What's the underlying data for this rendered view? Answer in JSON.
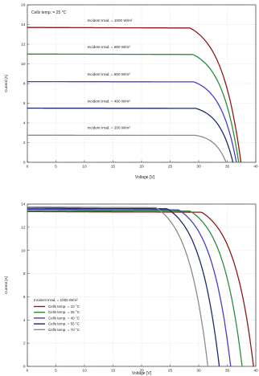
{
  "chart_data": [
    {
      "type": "line",
      "title": "",
      "xlabel": "Voltage [V]",
      "ylabel": "Current [A]",
      "xlim": [
        0,
        40
      ],
      "ylim": [
        0,
        16
      ],
      "xticks": [
        0,
        5,
        10,
        15,
        20,
        25,
        30,
        35,
        40
      ],
      "yticks": [
        0,
        2,
        4,
        6,
        8,
        10,
        12,
        14,
        16
      ],
      "grid": true,
      "annotation": "Cells temp. = 25 °C",
      "series": [
        {
          "name": "Incident Irrad. = 1000 W/m²",
          "color": "#8b1a1a",
          "isc": 13.7,
          "voc": 37.4,
          "vk": 28.5
        },
        {
          "name": "Incident Irrad. = 800 W/m²",
          "color": "#2e8b3d",
          "isc": 11.0,
          "voc": 37.0,
          "vk": 29.0
        },
        {
          "name": "Incident Irrad. = 600 W/m²",
          "color": "#4a3fbf",
          "isc": 8.2,
          "voc": 36.6,
          "vk": 29.2
        },
        {
          "name": "Incident Irrad. = 400 W/m²",
          "color": "#1f2a6b",
          "isc": 5.5,
          "voc": 36.0,
          "vk": 29.5
        },
        {
          "name": "Incident Irrad. = 200 W/m²",
          "color": "#8c8c8c",
          "isc": 2.75,
          "voc": 34.8,
          "vk": 29.5
        }
      ],
      "labels": [
        {
          "text": "Incident Irrad. = 1000 W/m²",
          "x": 10.5,
          "y": 14.3
        },
        {
          "text": "Incident Irrad. = 800 W/m²",
          "x": 10.5,
          "y": 11.6
        },
        {
          "text": "Incident Irrad. = 600 W/m²",
          "x": 10.5,
          "y": 8.8
        },
        {
          "text": "Incident Irrad. = 400 W/m²",
          "x": 10.5,
          "y": 6.1
        },
        {
          "text": "Incident Irrad. = 200 W/m²",
          "x": 10.5,
          "y": 3.4
        }
      ]
    },
    {
      "type": "line",
      "title": "",
      "xlabel": "Voltage [V]",
      "ylabel": "Current [A]",
      "xlim": [
        0,
        40
      ],
      "ylim": [
        0,
        14
      ],
      "xticks": [
        0,
        5,
        10,
        15,
        20,
        25,
        30,
        35,
        40
      ],
      "yticks": [
        0,
        2,
        4,
        6,
        8,
        10,
        12,
        14
      ],
      "grid": true,
      "legend_title": "Incident Irrad. = 1000 W/m²",
      "legend_placement": "center-left",
      "series": [
        {
          "name": "Cells temp. = 10 °C",
          "color": "#8b1a1a",
          "isc": 13.35,
          "voc": 39.6,
          "vk": 30.5
        },
        {
          "name": "Cells temp. = 25 °C",
          "color": "#2e8b3d",
          "isc": 13.45,
          "voc": 37.6,
          "vk": 28.5
        },
        {
          "name": "Cells temp. = 40 °C",
          "color": "#4a3fbf",
          "isc": 13.55,
          "voc": 35.6,
          "vk": 26.5
        },
        {
          "name": "Cells temp. = 55 °C",
          "color": "#1f2a6b",
          "isc": 13.65,
          "voc": 33.6,
          "vk": 24.5
        },
        {
          "name": "Cells temp. = 70 °C",
          "color": "#8c8c8c",
          "isc": 13.75,
          "voc": 31.6,
          "vk": 22.5
        }
      ]
    }
  ]
}
